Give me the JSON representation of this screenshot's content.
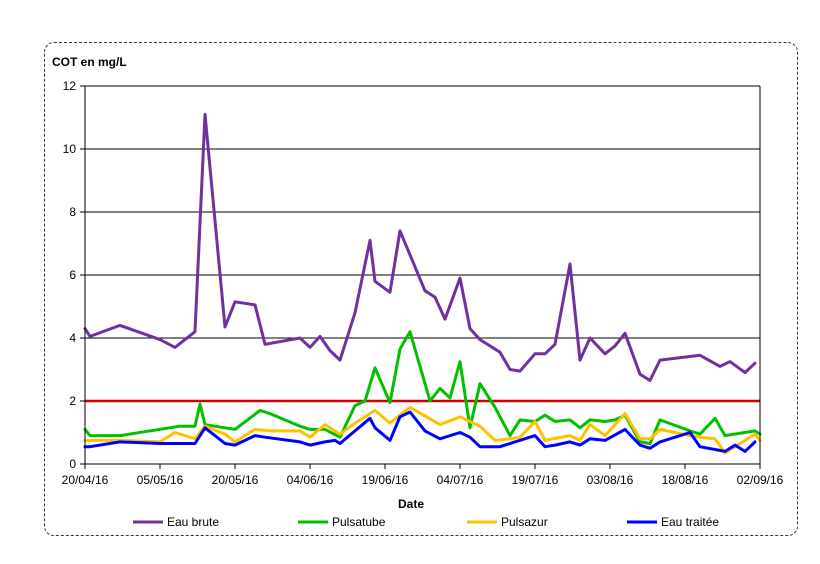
{
  "chart_data": {
    "type": "line",
    "title": "",
    "ylabel": "COT en mg/L",
    "xlabel": "Date",
    "ylim": [
      0,
      12
    ],
    "yticks": [
      0,
      2,
      4,
      6,
      8,
      10,
      12
    ],
    "xlim": [
      "2016-04-20",
      "2016-09-02"
    ],
    "xticks": [
      "20/04/16",
      "05/05/16",
      "20/05/16",
      "04/06/16",
      "19/06/16",
      "04/07/16",
      "19/07/16",
      "03/08/16",
      "18/08/16",
      "02/09/16"
    ],
    "grid": "horizontal",
    "legend_position": "bottom",
    "threshold": {
      "y": 2,
      "color": "#cc0000"
    },
    "series": [
      {
        "name": "Eau brute",
        "color": "#7030a0",
        "points": [
          [
            "2016-04-20",
            4.3
          ],
          [
            "2016-04-21",
            4.05
          ],
          [
            "2016-04-27",
            4.4
          ],
          [
            "2016-05-05",
            3.95
          ],
          [
            "2016-05-08",
            3.7
          ],
          [
            "2016-05-12",
            4.2
          ],
          [
            "2016-05-14",
            11.1
          ],
          [
            "2016-05-18",
            4.35
          ],
          [
            "2016-05-20",
            5.15
          ],
          [
            "2016-05-24",
            5.05
          ],
          [
            "2016-05-26",
            3.8
          ],
          [
            "2016-06-02",
            4.0
          ],
          [
            "2016-06-04",
            3.7
          ],
          [
            "2016-06-06",
            4.05
          ],
          [
            "2016-06-08",
            3.6
          ],
          [
            "2016-06-10",
            3.3
          ],
          [
            "2016-06-13",
            4.8
          ],
          [
            "2016-06-16",
            7.1
          ],
          [
            "2016-06-17",
            5.8
          ],
          [
            "2016-06-20",
            5.45
          ],
          [
            "2016-06-22",
            7.4
          ],
          [
            "2016-06-27",
            5.5
          ],
          [
            "2016-06-29",
            5.3
          ],
          [
            "2016-07-01",
            4.6
          ],
          [
            "2016-07-04",
            5.9
          ],
          [
            "2016-07-06",
            4.3
          ],
          [
            "2016-07-08",
            3.95
          ],
          [
            "2016-07-12",
            3.55
          ],
          [
            "2016-07-14",
            3.0
          ],
          [
            "2016-07-16",
            2.95
          ],
          [
            "2016-07-19",
            3.5
          ],
          [
            "2016-07-21",
            3.5
          ],
          [
            "2016-07-23",
            3.8
          ],
          [
            "2016-07-26",
            6.35
          ],
          [
            "2016-07-28",
            3.3
          ],
          [
            "2016-07-30",
            4.0
          ],
          [
            "2016-08-02",
            3.5
          ],
          [
            "2016-08-04",
            3.75
          ],
          [
            "2016-08-06",
            4.15
          ],
          [
            "2016-08-09",
            2.85
          ],
          [
            "2016-08-11",
            2.65
          ],
          [
            "2016-08-13",
            3.3
          ],
          [
            "2016-08-21",
            3.45
          ],
          [
            "2016-08-25",
            3.1
          ],
          [
            "2016-08-27",
            3.25
          ],
          [
            "2016-08-30",
            2.9
          ],
          [
            "2016-09-01",
            3.2
          ]
        ]
      },
      {
        "name": "Pulsatube",
        "color": "#00c000",
        "points": [
          [
            "2016-04-20",
            1.1
          ],
          [
            "2016-04-21",
            0.9
          ],
          [
            "2016-04-27",
            0.9
          ],
          [
            "2016-05-09",
            1.2
          ],
          [
            "2016-05-12",
            1.2
          ],
          [
            "2016-05-13",
            1.9
          ],
          [
            "2016-05-14",
            1.25
          ],
          [
            "2016-05-18",
            1.15
          ],
          [
            "2016-05-20",
            1.1
          ],
          [
            "2016-05-25",
            1.7
          ],
          [
            "2016-05-27",
            1.6
          ],
          [
            "2016-06-02",
            1.2
          ],
          [
            "2016-06-04",
            1.1
          ],
          [
            "2016-06-07",
            1.1
          ],
          [
            "2016-06-10",
            0.85
          ],
          [
            "2016-06-13",
            1.85
          ],
          [
            "2016-06-15",
            2.0
          ],
          [
            "2016-06-17",
            3.05
          ],
          [
            "2016-06-20",
            1.95
          ],
          [
            "2016-06-22",
            3.65
          ],
          [
            "2016-06-24",
            4.2
          ],
          [
            "2016-06-28",
            2.0
          ],
          [
            "2016-06-30",
            2.4
          ],
          [
            "2016-07-02",
            2.1
          ],
          [
            "2016-07-04",
            3.25
          ],
          [
            "2016-07-06",
            1.15
          ],
          [
            "2016-07-08",
            2.55
          ],
          [
            "2016-07-11",
            1.8
          ],
          [
            "2016-07-14",
            0.9
          ],
          [
            "2016-07-16",
            1.4
          ],
          [
            "2016-07-19",
            1.35
          ],
          [
            "2016-07-21",
            1.55
          ],
          [
            "2016-07-23",
            1.35
          ],
          [
            "2016-07-26",
            1.4
          ],
          [
            "2016-07-28",
            1.15
          ],
          [
            "2016-07-30",
            1.4
          ],
          [
            "2016-08-02",
            1.35
          ],
          [
            "2016-08-04",
            1.4
          ],
          [
            "2016-08-06",
            1.55
          ],
          [
            "2016-08-09",
            0.7
          ],
          [
            "2016-08-11",
            0.65
          ],
          [
            "2016-08-13",
            1.4
          ],
          [
            "2016-08-19",
            1.05
          ],
          [
            "2016-08-21",
            0.95
          ],
          [
            "2016-08-24",
            1.45
          ],
          [
            "2016-08-26",
            0.9
          ],
          [
            "2016-09-01",
            1.05
          ],
          [
            "2016-09-02",
            0.95
          ]
        ]
      },
      {
        "name": "Pulsazur",
        "color": "#ffc000",
        "points": [
          [
            "2016-04-20",
            0.75
          ],
          [
            "2016-04-21",
            0.75
          ],
          [
            "2016-04-27",
            0.75
          ],
          [
            "2016-05-05",
            0.7
          ],
          [
            "2016-05-08",
            1.0
          ],
          [
            "2016-05-12",
            0.8
          ],
          [
            "2016-05-14",
            1.2
          ],
          [
            "2016-05-18",
            0.95
          ],
          [
            "2016-05-20",
            0.7
          ],
          [
            "2016-05-24",
            1.1
          ],
          [
            "2016-05-27",
            1.05
          ],
          [
            "2016-06-02",
            1.05
          ],
          [
            "2016-06-04",
            0.85
          ],
          [
            "2016-06-07",
            1.25
          ],
          [
            "2016-06-10",
            0.95
          ],
          [
            "2016-06-13",
            1.3
          ],
          [
            "2016-06-17",
            1.7
          ],
          [
            "2016-06-20",
            1.3
          ],
          [
            "2016-06-22",
            1.55
          ],
          [
            "2016-06-24",
            1.8
          ],
          [
            "2016-06-30",
            1.25
          ],
          [
            "2016-07-04",
            1.5
          ],
          [
            "2016-07-06",
            1.35
          ],
          [
            "2016-07-08",
            1.2
          ],
          [
            "2016-07-11",
            0.75
          ],
          [
            "2016-07-14",
            0.8
          ],
          [
            "2016-07-16",
            0.85
          ],
          [
            "2016-07-19",
            1.35
          ],
          [
            "2016-07-21",
            0.75
          ],
          [
            "2016-07-26",
            0.9
          ],
          [
            "2016-07-28",
            0.75
          ],
          [
            "2016-07-30",
            1.25
          ],
          [
            "2016-08-02",
            0.9
          ],
          [
            "2016-08-06",
            1.6
          ],
          [
            "2016-08-09",
            0.8
          ],
          [
            "2016-08-11",
            0.8
          ],
          [
            "2016-08-13",
            1.1
          ],
          [
            "2016-08-19",
            0.9
          ],
          [
            "2016-08-21",
            0.85
          ],
          [
            "2016-08-24",
            0.8
          ],
          [
            "2016-08-26",
            0.35
          ],
          [
            "2016-08-30",
            0.75
          ],
          [
            "2016-09-01",
            0.95
          ],
          [
            "2016-09-02",
            0.75
          ]
        ]
      },
      {
        "name": "Eau traitée",
        "color": "#0000ff",
        "points": [
          [
            "2016-04-20",
            0.55
          ],
          [
            "2016-04-21",
            0.55
          ],
          [
            "2016-04-27",
            0.7
          ],
          [
            "2016-05-05",
            0.65
          ],
          [
            "2016-05-12",
            0.65
          ],
          [
            "2016-05-14",
            1.15
          ],
          [
            "2016-05-18",
            0.65
          ],
          [
            "2016-05-20",
            0.6
          ],
          [
            "2016-05-24",
            0.9
          ],
          [
            "2016-05-26",
            0.85
          ],
          [
            "2016-06-02",
            0.7
          ],
          [
            "2016-06-04",
            0.6
          ],
          [
            "2016-06-07",
            0.7
          ],
          [
            "2016-06-09",
            0.75
          ],
          [
            "2016-06-10",
            0.65
          ],
          [
            "2016-06-13",
            1.05
          ],
          [
            "2016-06-16",
            1.45
          ],
          [
            "2016-06-17",
            1.15
          ],
          [
            "2016-06-20",
            0.75
          ],
          [
            "2016-06-22",
            1.5
          ],
          [
            "2016-06-24",
            1.65
          ],
          [
            "2016-06-27",
            1.05
          ],
          [
            "2016-06-30",
            0.8
          ],
          [
            "2016-07-04",
            1.0
          ],
          [
            "2016-07-06",
            0.85
          ],
          [
            "2016-07-08",
            0.55
          ],
          [
            "2016-07-12",
            0.55
          ],
          [
            "2016-07-14",
            0.65
          ],
          [
            "2016-07-19",
            0.9
          ],
          [
            "2016-07-21",
            0.55
          ],
          [
            "2016-07-23",
            0.6
          ],
          [
            "2016-07-26",
            0.7
          ],
          [
            "2016-07-28",
            0.6
          ],
          [
            "2016-07-30",
            0.8
          ],
          [
            "2016-08-02",
            0.75
          ],
          [
            "2016-08-06",
            1.1
          ],
          [
            "2016-08-09",
            0.6
          ],
          [
            "2016-08-11",
            0.5
          ],
          [
            "2016-08-13",
            0.7
          ],
          [
            "2016-08-19",
            1.0
          ],
          [
            "2016-08-21",
            0.55
          ],
          [
            "2016-08-26",
            0.4
          ],
          [
            "2016-08-28",
            0.6
          ],
          [
            "2016-08-30",
            0.4
          ],
          [
            "2016-09-01",
            0.7
          ]
        ]
      }
    ]
  }
}
